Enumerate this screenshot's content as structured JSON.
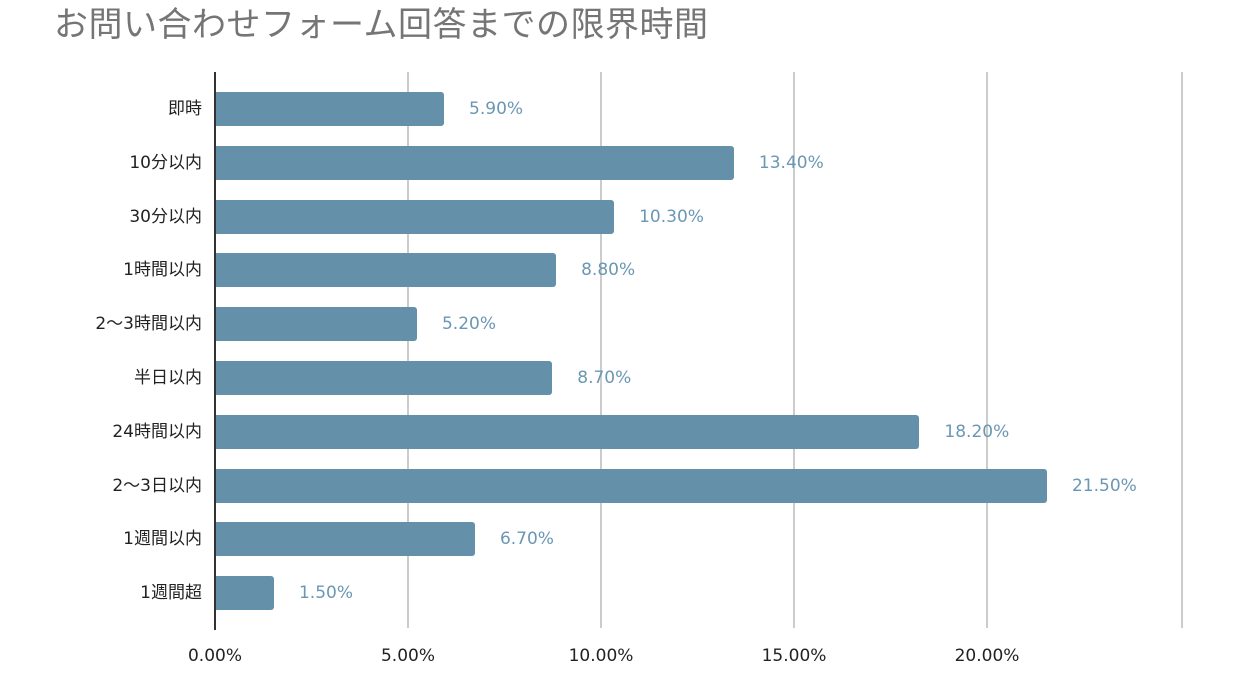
{
  "title": "お問い合わせフォーム回答までの限界時間",
  "colors": {
    "bar": "#6490a9",
    "value_label": "#6a97b3",
    "title": "#757575",
    "gridline": "#cccccc",
    "axis": "#333333"
  },
  "axis": {
    "ticks": [
      "0.00%",
      "5.00%",
      "10.00%",
      "15.00%",
      "20.00%"
    ]
  },
  "bars": [
    {
      "label": "即時",
      "value_text": "5.90%"
    },
    {
      "label": "10分以内",
      "value_text": "13.40%"
    },
    {
      "label": "30分以内",
      "value_text": "10.30%"
    },
    {
      "label": "1時間以内",
      "value_text": "8.80%"
    },
    {
      "label": "2〜3時間以内",
      "value_text": "5.20%"
    },
    {
      "label": "半日以内",
      "value_text": "8.70%"
    },
    {
      "label": "24時間以内",
      "value_text": "18.20%"
    },
    {
      "label": "2〜3日以内",
      "value_text": "21.50%"
    },
    {
      "label": "1週間以内",
      "value_text": "6.70%"
    },
    {
      "label": "1週間超",
      "value_text": "1.50%"
    }
  ],
  "chart_data": {
    "type": "bar",
    "orientation": "horizontal",
    "title": "お問い合わせフォーム回答までの限界時間",
    "categories": [
      "即時",
      "10分以内",
      "30分以内",
      "1時間以内",
      "2〜3時間以内",
      "半日以内",
      "24時間以内",
      "2〜3日以内",
      "1週間以内",
      "1週間超"
    ],
    "values": [
      5.9,
      13.4,
      10.3,
      8.8,
      5.2,
      8.7,
      18.2,
      21.5,
      6.7,
      1.5
    ],
    "value_labels": [
      "5.90%",
      "13.40%",
      "10.30%",
      "8.80%",
      "5.20%",
      "8.70%",
      "18.20%",
      "21.50%",
      "6.70%",
      "1.50%"
    ],
    "xlabel": "",
    "ylabel": "",
    "xlim": [
      0,
      25
    ],
    "x_ticks": [
      "0.00%",
      "5.00%",
      "10.00%",
      "15.00%",
      "20.00%"
    ],
    "grid": true,
    "legend": "none",
    "unit": "%"
  }
}
